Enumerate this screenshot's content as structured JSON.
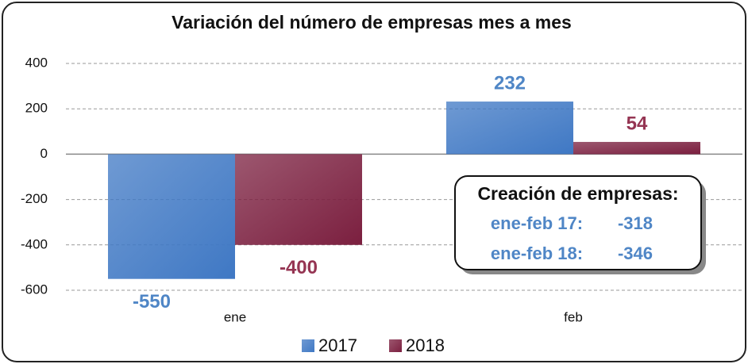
{
  "chart_data": {
    "type": "bar",
    "title": "Variación del número de empresas mes a mes",
    "categories": [
      "ene",
      "feb"
    ],
    "series": [
      {
        "name": "2017",
        "color": "#3f78c4",
        "label_color": "#4f86c6",
        "values": [
          -550,
          232
        ]
      },
      {
        "name": "2018",
        "color": "#7b1f3f",
        "label_color": "#953553",
        "values": [
          -400,
          54
        ]
      }
    ],
    "ylim": [
      -600,
      400
    ],
    "yticks": [
      -600,
      -400,
      -200,
      0,
      200,
      400
    ],
    "grid": true,
    "legend": "bottom",
    "annotation": {
      "title": "Creación de empresas:",
      "rows": [
        [
          "ene-feb 17:",
          -318
        ],
        [
          "ene-feb 18:",
          -346
        ]
      ]
    }
  }
}
